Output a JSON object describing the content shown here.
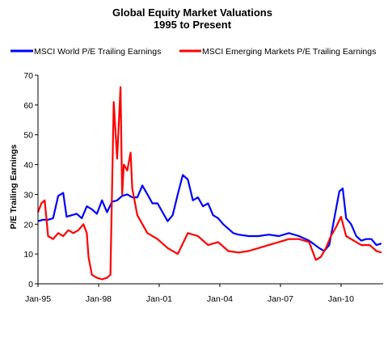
{
  "chart_data": {
    "type": "line",
    "title": "Global Equity Market Valuations",
    "subtitle": "1995 to Present",
    "ylabel": "P/E Trailing Earnings",
    "xlabel": "",
    "ylim": [
      0,
      70
    ],
    "yticks": [
      0,
      10,
      20,
      30,
      40,
      50,
      60,
      70
    ],
    "xlim": [
      "1995-01",
      "2012-02"
    ],
    "xticks": [
      {
        "date": "1995-01",
        "label": "Jan-95"
      },
      {
        "date": "1998-01",
        "label": "Jan-98"
      },
      {
        "date": "2001-01",
        "label": "Jan-01"
      },
      {
        "date": "2004-01",
        "label": "Jan-04"
      },
      {
        "date": "2007-01",
        "label": "Jan-07"
      },
      {
        "date": "2010-01",
        "label": "Jan-10"
      }
    ],
    "grid": false,
    "legend_position": "top",
    "series": [
      {
        "name": "MSCI World P/E Trailing Earnings",
        "color": "#0000ff",
        "points": [
          [
            "1995-01",
            21
          ],
          [
            "1995-04",
            21.5
          ],
          [
            "1995-07",
            21.5
          ],
          [
            "1995-10",
            22
          ],
          [
            "1996-01",
            29.5
          ],
          [
            "1996-04",
            30.5
          ],
          [
            "1996-06",
            22.5
          ],
          [
            "1996-09",
            23
          ],
          [
            "1996-12",
            23.5
          ],
          [
            "1997-03",
            22
          ],
          [
            "1997-06",
            26
          ],
          [
            "1997-09",
            25
          ],
          [
            "1997-12",
            23.5
          ],
          [
            "1998-03",
            28
          ],
          [
            "1998-06",
            24
          ],
          [
            "1998-09",
            27.5
          ],
          [
            "1998-12",
            28
          ],
          [
            "1999-03",
            29.5
          ],
          [
            "1999-06",
            30
          ],
          [
            "1999-09",
            29
          ],
          [
            "1999-12",
            29
          ],
          [
            "2000-03",
            33
          ],
          [
            "2000-06",
            30
          ],
          [
            "2000-09",
            27
          ],
          [
            "2000-12",
            27
          ],
          [
            "2001-03",
            24
          ],
          [
            "2001-06",
            21
          ],
          [
            "2001-09",
            23
          ],
          [
            "2001-12",
            30
          ],
          [
            "2002-03",
            36.5
          ],
          [
            "2002-06",
            35
          ],
          [
            "2002-09",
            28
          ],
          [
            "2002-12",
            29
          ],
          [
            "2003-03",
            26
          ],
          [
            "2003-06",
            27
          ],
          [
            "2003-09",
            23
          ],
          [
            "2003-12",
            22
          ],
          [
            "2004-03",
            20
          ],
          [
            "2004-06",
            18.5
          ],
          [
            "2004-09",
            17
          ],
          [
            "2004-12",
            16.5
          ],
          [
            "2005-06",
            16
          ],
          [
            "2005-12",
            16
          ],
          [
            "2006-06",
            16.5
          ],
          [
            "2006-12",
            16
          ],
          [
            "2007-06",
            17
          ],
          [
            "2007-12",
            16
          ],
          [
            "2008-06",
            14.5
          ],
          [
            "2008-12",
            12
          ],
          [
            "2009-03",
            11
          ],
          [
            "2009-06",
            13
          ],
          [
            "2009-09",
            22
          ],
          [
            "2009-12",
            31
          ],
          [
            "2010-02",
            32
          ],
          [
            "2010-04",
            22
          ],
          [
            "2010-07",
            20
          ],
          [
            "2010-10",
            16
          ],
          [
            "2011-01",
            14.5
          ],
          [
            "2011-04",
            15
          ],
          [
            "2011-07",
            15
          ],
          [
            "2011-10",
            13
          ],
          [
            "2012-01",
            13.5
          ]
        ]
      },
      {
        "name": "MSCI Emerging Markets P/E Trailing Earnings",
        "color": "#ff0000",
        "points": [
          [
            "1995-01",
            24
          ],
          [
            "1995-03",
            27
          ],
          [
            "1995-05",
            28
          ],
          [
            "1995-07",
            16
          ],
          [
            "1995-10",
            15
          ],
          [
            "1996-01",
            17
          ],
          [
            "1996-04",
            16
          ],
          [
            "1996-07",
            18
          ],
          [
            "1996-10",
            17
          ],
          [
            "1997-01",
            18
          ],
          [
            "1997-04",
            20
          ],
          [
            "1997-06",
            17
          ],
          [
            "1997-07",
            9
          ],
          [
            "1997-09",
            3
          ],
          [
            "1997-12",
            2
          ],
          [
            "1998-03",
            1.5
          ],
          [
            "1998-06",
            2
          ],
          [
            "1998-08",
            3
          ],
          [
            "1998-10",
            61
          ],
          [
            "1998-12",
            42
          ],
          [
            "1999-02",
            66
          ],
          [
            "1999-03",
            30
          ],
          [
            "1999-04",
            40
          ],
          [
            "1999-06",
            38
          ],
          [
            "1999-08",
            44
          ],
          [
            "1999-09",
            32
          ],
          [
            "1999-12",
            23
          ],
          [
            "2000-06",
            17
          ],
          [
            "2000-12",
            15
          ],
          [
            "2001-06",
            12
          ],
          [
            "2001-12",
            10
          ],
          [
            "2002-06",
            17
          ],
          [
            "2002-12",
            16
          ],
          [
            "2003-06",
            13
          ],
          [
            "2003-12",
            14
          ],
          [
            "2004-06",
            11
          ],
          [
            "2004-12",
            10.5
          ],
          [
            "2005-06",
            11
          ],
          [
            "2005-12",
            12
          ],
          [
            "2006-06",
            13
          ],
          [
            "2006-12",
            14
          ],
          [
            "2007-06",
            15
          ],
          [
            "2007-12",
            15
          ],
          [
            "2008-06",
            14
          ],
          [
            "2008-10",
            8
          ],
          [
            "2009-01",
            9
          ],
          [
            "2009-04",
            12
          ],
          [
            "2009-07",
            16
          ],
          [
            "2009-10",
            19
          ],
          [
            "2010-01",
            22.5
          ],
          [
            "2010-04",
            16
          ],
          [
            "2010-07",
            15
          ],
          [
            "2010-10",
            14
          ],
          [
            "2011-01",
            13
          ],
          [
            "2011-06",
            13
          ],
          [
            "2011-10",
            11
          ],
          [
            "2012-01",
            10.5
          ]
        ]
      }
    ]
  }
}
